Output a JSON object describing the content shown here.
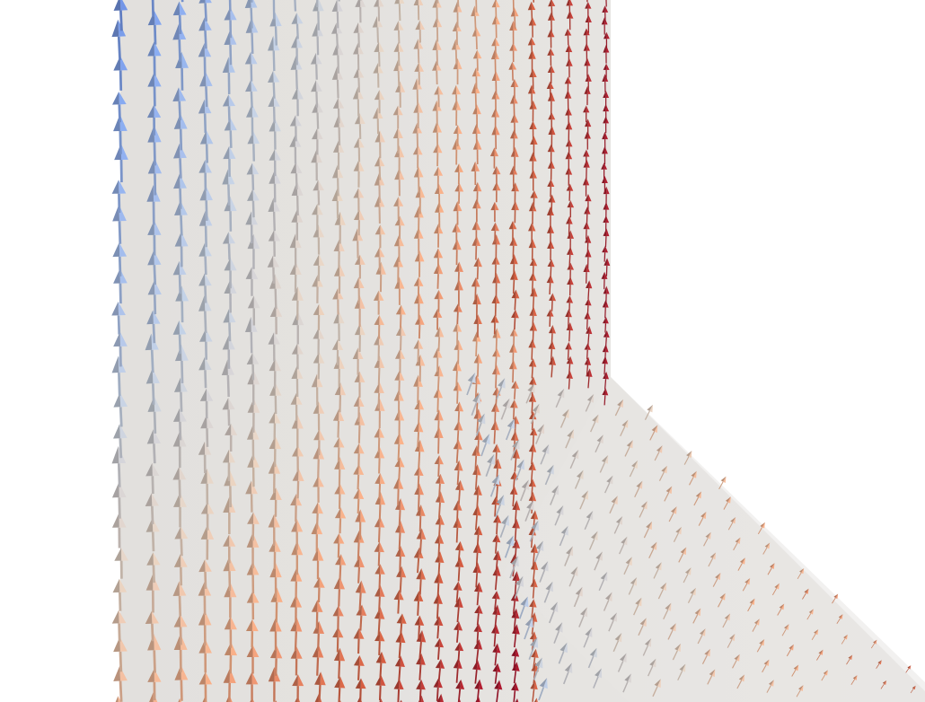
{
  "render": {
    "background_color": "#ffffff",
    "wall_color": "#e6e4e1",
    "floor_color": "#e8e6e3"
  },
  "glyph": {
    "type": "arrow-3d-glyph",
    "direction": "upward-flow"
  },
  "colormap": {
    "name": "cool-to-warm",
    "stops": [
      "#3e5fbf",
      "#7f9fe0",
      "#b8c4d6",
      "#d9c7b8",
      "#e8a47f",
      "#c85a3e",
      "#a0142a"
    ]
  }
}
